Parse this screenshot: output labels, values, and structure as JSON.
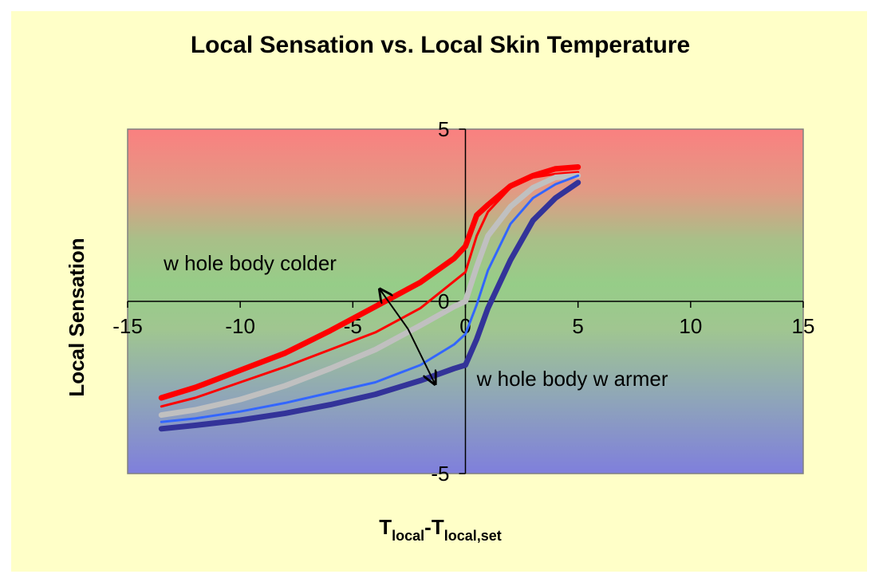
{
  "chart_data": {
    "type": "line",
    "title": "Local Sensation vs. Local Skin Temperature",
    "ylabel": "Local Sensation",
    "xlabel": {
      "main": "T",
      "sub1": "local",
      "sep": "-T",
      "sub2": "local,set"
    },
    "xlim": [
      -15,
      15
    ],
    "ylim": [
      -5,
      5
    ],
    "x_ticks": [
      -15,
      -10,
      -5,
      0,
      5,
      10,
      15
    ],
    "y_ticks": [
      -5,
      0,
      5
    ],
    "grid": false,
    "legend": "none",
    "background_gradient": [
      "#fa8080",
      "#e29a84",
      "#a9bf88",
      "#96cd88",
      "#a0c690",
      "#8fa6b8",
      "#7f7fdc"
    ],
    "series": [
      {
        "color": "#ff0000",
        "width": 7,
        "points": [
          [
            -13.5,
            -2.8
          ],
          [
            -12,
            -2.5
          ],
          [
            -10,
            -2.0
          ],
          [
            -8,
            -1.5
          ],
          [
            -6,
            -0.85
          ],
          [
            -4,
            -0.15
          ],
          [
            -2,
            0.55
          ],
          [
            -0.5,
            1.25
          ],
          [
            0,
            1.6
          ],
          [
            0.5,
            2.5
          ],
          [
            1,
            2.8
          ],
          [
            2,
            3.35
          ],
          [
            3,
            3.65
          ],
          [
            4,
            3.85
          ],
          [
            5,
            3.9
          ]
        ]
      },
      {
        "color": "#ff0000",
        "width": 3,
        "points": [
          [
            -13.5,
            -3.05
          ],
          [
            -12,
            -2.8
          ],
          [
            -10,
            -2.35
          ],
          [
            -8,
            -1.9
          ],
          [
            -6,
            -1.4
          ],
          [
            -4,
            -0.9
          ],
          [
            -2,
            -0.2
          ],
          [
            0,
            0.85
          ],
          [
            0.5,
            1.9
          ],
          [
            1,
            2.6
          ],
          [
            2,
            3.3
          ],
          [
            3,
            3.6
          ],
          [
            4,
            3.7
          ],
          [
            5,
            3.75
          ]
        ]
      },
      {
        "color": "#c0c0c0",
        "width": 7,
        "points": [
          [
            -13.5,
            -3.3
          ],
          [
            -12,
            -3.15
          ],
          [
            -10,
            -2.85
          ],
          [
            -8,
            -2.45
          ],
          [
            -6,
            -1.95
          ],
          [
            -4,
            -1.4
          ],
          [
            -2,
            -0.7
          ],
          [
            -0.5,
            -0.15
          ],
          [
            0,
            0.0
          ],
          [
            0.5,
            1.0
          ],
          [
            1,
            1.9
          ],
          [
            2,
            2.75
          ],
          [
            3,
            3.3
          ],
          [
            4,
            3.6
          ],
          [
            5,
            3.65
          ]
        ]
      },
      {
        "color": "#3366ff",
        "width": 3,
        "points": [
          [
            -13.5,
            -3.5
          ],
          [
            -12,
            -3.4
          ],
          [
            -10,
            -3.2
          ],
          [
            -8,
            -2.95
          ],
          [
            -6,
            -2.65
          ],
          [
            -4,
            -2.35
          ],
          [
            -2,
            -1.85
          ],
          [
            -0.5,
            -1.25
          ],
          [
            0,
            -0.95
          ],
          [
            0.5,
            -0.1
          ],
          [
            1,
            0.9
          ],
          [
            2,
            2.25
          ],
          [
            3,
            3.0
          ],
          [
            4,
            3.4
          ],
          [
            5,
            3.65
          ]
        ]
      },
      {
        "color": "#333399",
        "width": 7,
        "points": [
          [
            -13.5,
            -3.7
          ],
          [
            -12,
            -3.6
          ],
          [
            -10,
            -3.45
          ],
          [
            -8,
            -3.25
          ],
          [
            -6,
            -3.0
          ],
          [
            -4,
            -2.7
          ],
          [
            -2,
            -2.3
          ],
          [
            -0.5,
            -1.95
          ],
          [
            0,
            -1.85
          ],
          [
            0.5,
            -1.1
          ],
          [
            1,
            -0.2
          ],
          [
            2,
            1.2
          ],
          [
            3,
            2.35
          ],
          [
            4,
            3.0
          ],
          [
            5,
            3.45
          ]
        ]
      }
    ],
    "annotations": [
      {
        "text": "w hole body colder",
        "x": -13.4,
        "y": 0.9
      },
      {
        "text": "w hole body w armer",
        "x": 0.5,
        "y": -2.45
      }
    ],
    "arrow": {
      "center": [
        -2.55,
        -0.8
      ],
      "end_top": [
        -3.8,
        0.35
      ],
      "end_bottom": [
        -1.35,
        -2.4
      ]
    }
  }
}
